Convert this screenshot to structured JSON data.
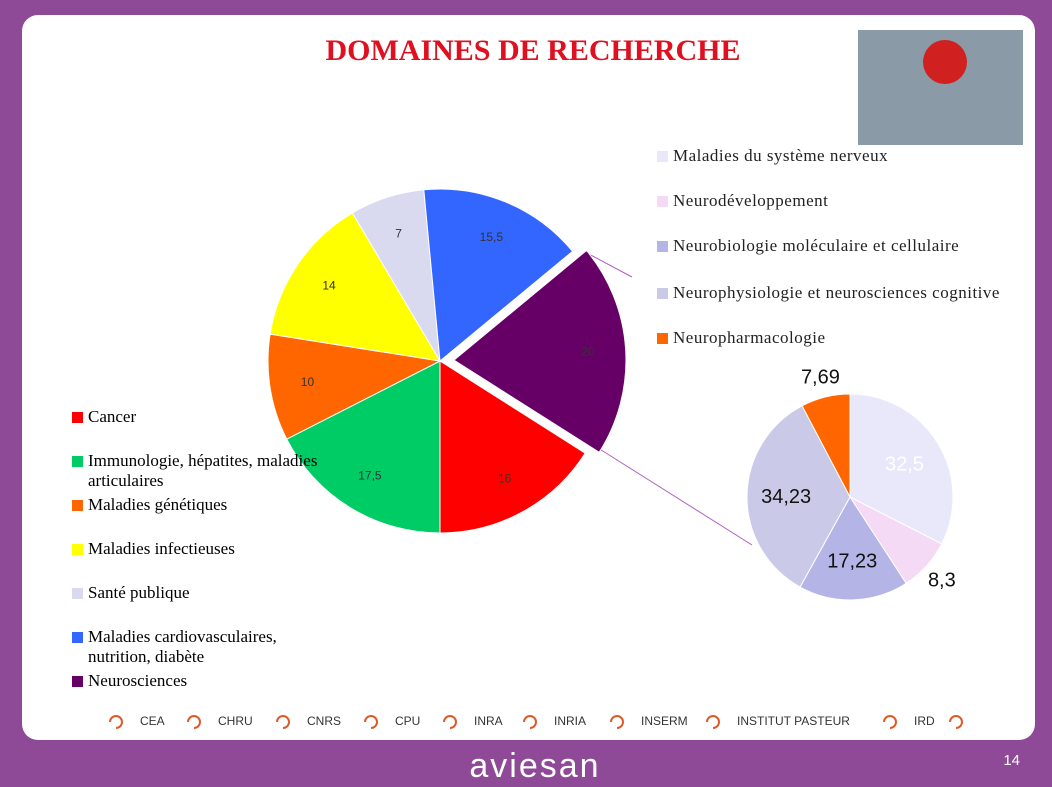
{
  "chart_data": [
    {
      "type": "pie",
      "title": "DOMAINES DE RECHERCHE",
      "categories": [
        "Cancer",
        "Immunologie, hépatites, maladies articulaires",
        "Maladies génétiques",
        "Maladies infectieuses",
        "Santé publique",
        "Maladies cardiovasculaires, nutrition, diabète",
        "Neurosciences"
      ],
      "values": [
        16,
        17.5,
        10,
        14,
        7,
        15.5,
        20
      ],
      "value_labels": [
        "16",
        "17,5",
        "10",
        "14",
        "7",
        "15,5",
        "20"
      ],
      "colors": [
        "#ff0000",
        "#00cc66",
        "#ff6600",
        "#ffff00",
        "#d9d9f0",
        "#3366ff",
        "#660066"
      ]
    },
    {
      "type": "pie",
      "categories": [
        "Maladies du système nerveux",
        "Neurodéveloppement",
        "Neurobiologie moléculaire et cellulaire",
        "Neurophysiologie et neurosciences cognitive",
        "Neuropharmacologie"
      ],
      "values": [
        32.5,
        8.3,
        17.23,
        34.23,
        7.69
      ],
      "value_labels": [
        "32,5",
        "8,3",
        "17,23",
        "34,23",
        "7,69"
      ],
      "colors": [
        "#e8e8fa",
        "#f5daf5",
        "#b4b4e6",
        "#cacae8",
        "#ff6600"
      ]
    }
  ],
  "partners": [
    "CEA",
    "CHRU",
    "CNRS",
    "CPU",
    "INRA",
    "INRIA",
    "INSERM",
    "INSTITUT PASTEUR",
    "IRD"
  ],
  "logo": "aviesan",
  "page_number": "14"
}
